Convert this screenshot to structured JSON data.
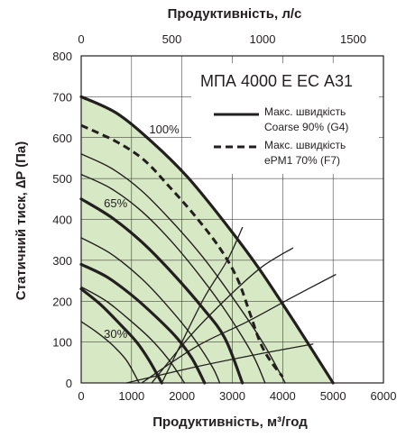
{
  "chart_data": {
    "type": "line",
    "model": "МПА 4000 Е ЕС А31",
    "xlabel": "Продуктивність, м³/год",
    "x2label": "Продуктивність, л/с",
    "ylabel": "Статичний тиск, ∆P (Па)",
    "xlim": [
      0,
      6000
    ],
    "x2lim": [
      0,
      1666.7
    ],
    "ylim": [
      0,
      800
    ],
    "x_ticks": [
      "0",
      "1000",
      "2000",
      "3000",
      "4000",
      "5000",
      "6000"
    ],
    "x2_ticks": [
      "0",
      "500",
      "1000",
      "1500"
    ],
    "y_ticks": [
      "0",
      "100",
      "200",
      "300",
      "400",
      "500",
      "600",
      "700",
      "800"
    ],
    "grid": true,
    "operating_area_color": "#d7e8c4",
    "speed_labels": [
      {
        "text": "100%",
        "x": 1350,
        "y": 610
      },
      {
        "text": "65%",
        "x": 450,
        "y": 430
      },
      {
        "text": "30%",
        "x": 450,
        "y": 110
      }
    ],
    "legend": [
      {
        "text1": "Макс. швидкість",
        "text2": "Coarse 90% (G4)",
        "style": "solid"
      },
      {
        "text1": "Макс. швидкість",
        "text2": "ePM1 70% (F7)",
        "style": "dashed"
      }
    ],
    "series": [
      {
        "name": "Макс. швидкість Coarse 90% (G4)",
        "style": "bold",
        "points": [
          [
            0,
            700
          ],
          [
            700,
            660
          ],
          [
            1400,
            590
          ],
          [
            2100,
            505
          ],
          [
            2800,
            400
          ],
          [
            3500,
            285
          ],
          [
            4200,
            155
          ],
          [
            5000,
            0
          ]
        ]
      },
      {
        "name": "Макс. швидкість ePM1 70% (F7)",
        "style": "dashed",
        "points": [
          [
            0,
            630
          ],
          [
            700,
            590
          ],
          [
            1250,
            545
          ],
          [
            1750,
            480
          ],
          [
            2250,
            410
          ],
          [
            2750,
            330
          ],
          [
            3100,
            255
          ],
          [
            3350,
            170
          ],
          [
            3550,
            100
          ],
          [
            3750,
            55
          ],
          [
            4000,
            15
          ]
        ]
      },
      {
        "style": "thin",
        "points": [
          [
            0,
            560
          ],
          [
            600,
            525
          ],
          [
            1200,
            470
          ],
          [
            1800,
            395
          ],
          [
            2400,
            310
          ],
          [
            3000,
            210
          ],
          [
            3600,
            100
          ],
          [
            4050,
            0
          ]
        ]
      },
      {
        "style": "thin",
        "points": [
          [
            0,
            510
          ],
          [
            600,
            475
          ],
          [
            1200,
            420
          ],
          [
            1800,
            345
          ],
          [
            2400,
            255
          ],
          [
            2900,
            170
          ],
          [
            3400,
            70
          ],
          [
            3650,
            0
          ]
        ]
      },
      {
        "style": "bold",
        "points": [
          [
            0,
            450
          ],
          [
            600,
            405
          ],
          [
            1200,
            345
          ],
          [
            1800,
            270
          ],
          [
            2400,
            185
          ],
          [
            2850,
            110
          ],
          [
            3200,
            0
          ]
        ]
      },
      {
        "style": "thin",
        "points": [
          [
            0,
            355
          ],
          [
            600,
            315
          ],
          [
            1200,
            255
          ],
          [
            1700,
            190
          ],
          [
            2200,
            115
          ],
          [
            2600,
            40
          ],
          [
            2750,
            0
          ]
        ]
      },
      {
        "style": "bold",
        "points": [
          [
            0,
            290
          ],
          [
            500,
            260
          ],
          [
            1000,
            215
          ],
          [
            1500,
            160
          ],
          [
            1900,
            110
          ],
          [
            2200,
            60
          ],
          [
            2450,
            0
          ]
        ]
      },
      {
        "style": "thin",
        "points": [
          [
            0,
            235
          ],
          [
            500,
            200
          ],
          [
            1000,
            150
          ],
          [
            1400,
            105
          ],
          [
            1750,
            55
          ],
          [
            2050,
            0
          ]
        ]
      },
      {
        "style": "bold",
        "points": [
          [
            0,
            230
          ],
          [
            400,
            190
          ],
          [
            800,
            140
          ],
          [
            1100,
            100
          ],
          [
            1350,
            55
          ],
          [
            1600,
            0
          ]
        ]
      },
      {
        "style": "thin",
        "points": [
          [
            0,
            150
          ],
          [
            300,
            125
          ],
          [
            600,
            95
          ],
          [
            900,
            55
          ],
          [
            1150,
            0
          ]
        ]
      },
      {
        "style": "system",
        "points": [
          [
            1600,
            0
          ],
          [
            2000,
            100
          ],
          [
            2450,
            210
          ],
          [
            2900,
            300
          ],
          [
            3200,
            380
          ]
        ]
      },
      {
        "style": "system",
        "points": [
          [
            1400,
            0
          ],
          [
            2200,
            120
          ],
          [
            3000,
            220
          ],
          [
            3600,
            285
          ],
          [
            4200,
            330
          ]
        ]
      },
      {
        "style": "system",
        "points": [
          [
            1200,
            0
          ],
          [
            2300,
            90
          ],
          [
            3300,
            150
          ],
          [
            4200,
            210
          ],
          [
            5050,
            265
          ]
        ]
      },
      {
        "style": "system",
        "points": [
          [
            900,
            0
          ],
          [
            2300,
            40
          ],
          [
            3500,
            70
          ],
          [
            4600,
            95
          ]
        ]
      }
    ]
  }
}
